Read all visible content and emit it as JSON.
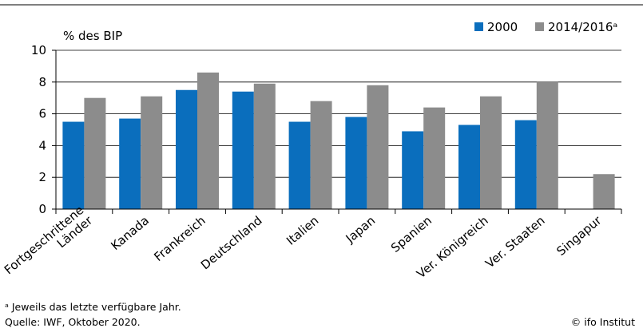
{
  "chart_data": {
    "type": "bar",
    "ylabel": "% des BIP",
    "ylim": [
      0,
      10
    ],
    "yticks": [
      0,
      2,
      4,
      6,
      8,
      10
    ],
    "grid": true,
    "legend_position": "top-right",
    "categories": [
      "Fortgeschrittene Länder",
      "Kanada",
      "Frankreich",
      "Deutschland",
      "Italien",
      "Japan",
      "Spanien",
      "Ver. Königreich",
      "Ver. Staaten",
      "Singapur"
    ],
    "category_lines": [
      [
        "Fortgeschrittene",
        "Länder"
      ],
      [
        "Kanada"
      ],
      [
        "Frankreich"
      ],
      [
        "Deutschland"
      ],
      [
        "Italien"
      ],
      [
        "Japan"
      ],
      [
        "Spanien"
      ],
      [
        "Ver. Königreich"
      ],
      [
        "Ver. Staaten"
      ],
      [
        "Singapur"
      ]
    ],
    "series": [
      {
        "name": "2000",
        "color": "#0a6ebd",
        "values": [
          5.5,
          5.7,
          7.5,
          7.4,
          5.5,
          5.8,
          4.9,
          5.3,
          5.6,
          null
        ]
      },
      {
        "name": "2014/2016ᵃ",
        "color": "#8c8c8c",
        "values": [
          7.0,
          7.1,
          8.6,
          7.9,
          6.8,
          7.8,
          6.4,
          7.1,
          8.0,
          2.2
        ]
      }
    ]
  },
  "footnote": "ᵃ Jeweils das letzte verfügbare Jahr.",
  "source": "Quelle: IWF, Oktober 2020.",
  "credit": "© ifo Institut"
}
